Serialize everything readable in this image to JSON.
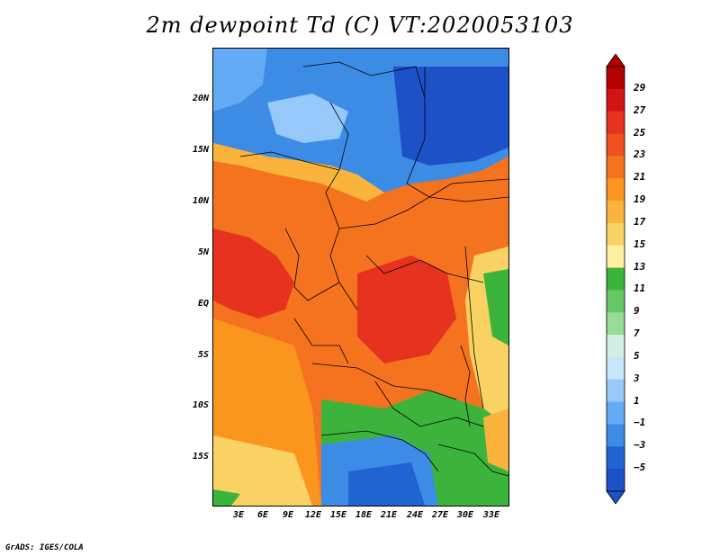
{
  "title": "2m dewpoint Td (C) VT:2020053103",
  "credit": "GrADS: IGES/COLA",
  "lat_labels": [
    "20N",
    "15N",
    "10N",
    "5N",
    "EQ",
    "5S",
    "10S",
    "15S"
  ],
  "lon_labels": [
    "3E",
    "6E",
    "9E",
    "12E",
    "15E",
    "18E",
    "21E",
    "24E",
    "27E",
    "30E",
    "33E"
  ],
  "colorbar": {
    "labels": [
      "29",
      "27",
      "25",
      "23",
      "21",
      "19",
      "17",
      "15",
      "13",
      "11",
      "9",
      "7",
      "5",
      "3",
      "1",
      "−1",
      "−3",
      "−5"
    ],
    "colors": [
      "#b40000",
      "#d41414",
      "#e6321e",
      "#f04f1e",
      "#f5731e",
      "#fa961e",
      "#fab43c",
      "#fad264",
      "#fff0a0",
      "#3cb43c",
      "#64c864",
      "#96dc96",
      "#d2f0e6",
      "#c8e6fa",
      "#96c8fa",
      "#64aaf5",
      "#3c8ce6",
      "#2064d2",
      "#1e50c8"
    ]
  },
  "icons": {
    "arrow_up": "triangle-up",
    "arrow_down": "triangle-down"
  }
}
